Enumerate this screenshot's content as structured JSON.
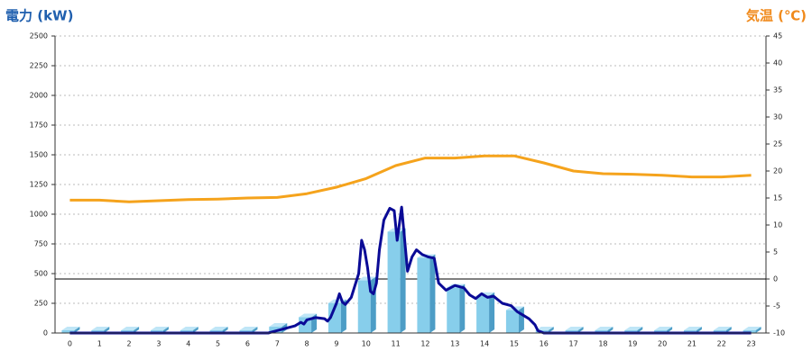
{
  "chart_data": {
    "type": "combo",
    "y_title": "電力 (kW)",
    "y2_title": "気温 (℃)",
    "y_title_color": "#1f5fae",
    "y2_title_color": "#f08a1c",
    "categories": [
      "0",
      "1",
      "2",
      "3",
      "4",
      "5",
      "6",
      "7",
      "8",
      "9",
      "10",
      "11",
      "12",
      "13",
      "14",
      "15",
      "16",
      "17",
      "18",
      "19",
      "20",
      "21",
      "22",
      "23"
    ],
    "ylim": [
      0,
      2500
    ],
    "yticks": [
      0,
      250,
      500,
      750,
      1000,
      1250,
      1500,
      1750,
      2000,
      2250,
      2500
    ],
    "y2lim": [
      -10,
      45
    ],
    "y2ticks": [
      -10,
      -5,
      0,
      5,
      10,
      15,
      20,
      25,
      30,
      35,
      40,
      45
    ],
    "grid": true,
    "y2_zero_line": true,
    "series": [
      {
        "type": "bar3d",
        "color": "#87ceeb",
        "values": [
          0,
          0,
          0,
          0,
          0,
          0,
          0,
          30,
          110,
          230,
          420,
          830,
          610,
          360,
          290,
          170,
          0,
          0,
          0,
          0,
          0,
          0,
          0,
          0
        ]
      },
      {
        "type": "line",
        "color": "#0a0a96",
        "x": [
          0,
          6.5,
          6.7,
          7,
          7.3,
          7.6,
          7.8,
          7.9,
          8,
          8.3,
          8.6,
          8.7,
          8.8,
          9,
          9.1,
          9.2,
          9.3,
          9.5,
          9.6,
          9.75,
          9.85,
          9.95,
          10.05,
          10.15,
          10.25,
          10.35,
          10.45,
          10.6,
          10.8,
          10.95,
          11.05,
          11.2,
          11.4,
          11.55,
          11.7,
          11.9,
          12.1,
          12.3,
          12.45,
          12.7,
          13,
          13.3,
          13.5,
          13.7,
          13.9,
          14.1,
          14.3,
          14.6,
          14.9,
          15.1,
          15.3,
          15.5,
          15.7,
          15.8,
          16,
          23
        ],
        "values": [
          0,
          0,
          0,
          20,
          40,
          60,
          90,
          75,
          110,
          130,
          120,
          100,
          130,
          250,
          330,
          260,
          240,
          300,
          380,
          500,
          780,
          700,
          550,
          350,
          330,
          420,
          700,
          950,
          1050,
          1030,
          780,
          1060,
          520,
          640,
          700,
          660,
          640,
          630,
          420,
          360,
          400,
          380,
          320,
          290,
          330,
          300,
          310,
          250,
          230,
          180,
          150,
          120,
          70,
          20,
          0,
          0
        ]
      },
      {
        "type": "line",
        "color": "#f5a31c",
        "axis": "y2",
        "values": [
          14.6,
          14.6,
          14.3,
          14.5,
          14.7,
          14.8,
          15,
          15.1,
          15.8,
          17,
          18.6,
          21,
          22.4,
          22.4,
          22.8,
          22.8,
          21.5,
          20,
          19.5,
          19.4,
          19.2,
          18.9,
          18.9,
          19.2
        ]
      }
    ]
  }
}
